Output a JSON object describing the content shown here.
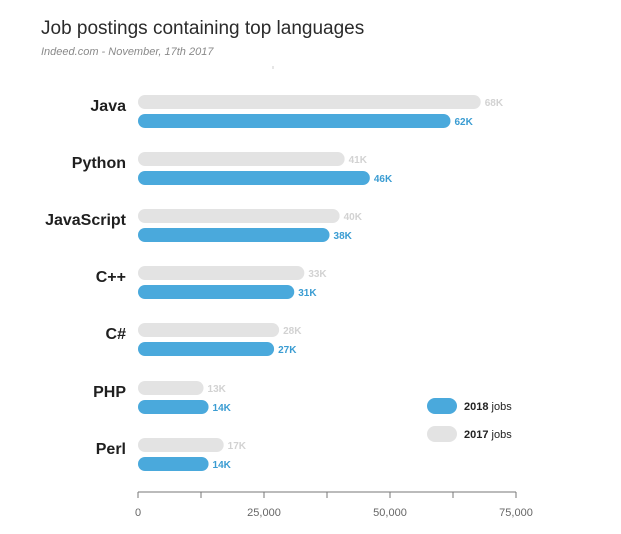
{
  "chart_data": {
    "type": "bar",
    "orientation": "horizontal",
    "title": "Job postings containing top languages",
    "subtitle": "Indeed.com - November, 17th 2017",
    "categories": [
      "Java",
      "Python",
      "JavaScript",
      "C++",
      "C#",
      "PHP",
      "Perl"
    ],
    "series": [
      {
        "name": "2017",
        "color": "#e3e3e3",
        "values": [
          68000,
          41000,
          40000,
          33000,
          28000,
          13000,
          17000
        ],
        "labels": [
          "68K",
          "41K",
          "40K",
          "33K",
          "28K",
          "13K",
          "17K"
        ]
      },
      {
        "name": "2018",
        "color": "#4aa9dc",
        "values": [
          62000,
          46000,
          38000,
          31000,
          27000,
          14000,
          14000
        ],
        "labels": [
          "62K",
          "46K",
          "38K",
          "31K",
          "27K",
          "14K",
          "14K"
        ]
      }
    ],
    "xlim": [
      0,
      75000
    ],
    "xticks": [
      0,
      25000,
      50000,
      75000
    ],
    "xtick_labels": [
      "0",
      "25,000",
      "50,000",
      "75,000"
    ],
    "legend": {
      "placement": "bottom-right",
      "items": [
        {
          "series": "2018",
          "bold": "2018",
          "text": "jobs",
          "color": "#4aa9dc"
        },
        {
          "series": "2017",
          "bold": "2017",
          "text": "jobs",
          "color": "#e3e3e3"
        }
      ]
    },
    "grid": false
  }
}
